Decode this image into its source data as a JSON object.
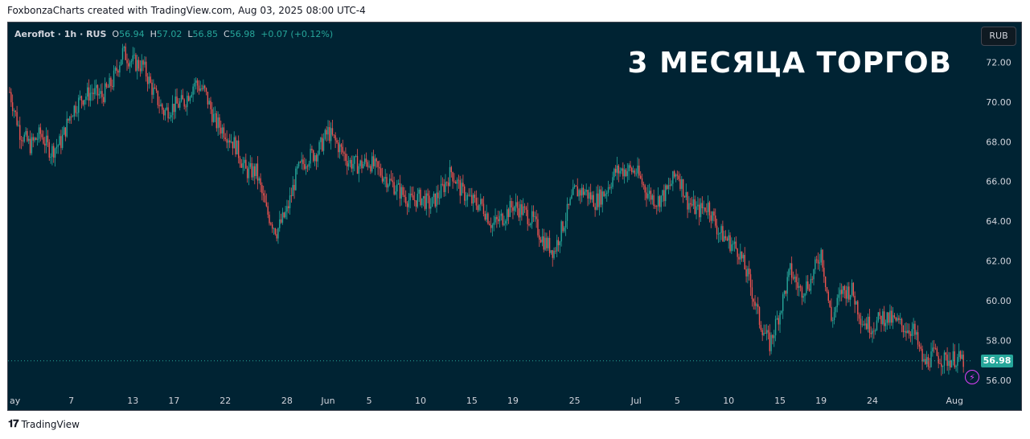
{
  "header": {
    "caption": "FoxbonzaCharts created with TradingView.com, Aug 03, 2025 08:00 UTC-4"
  },
  "legend": {
    "symbol": "Aeroflot · 1h · RUS",
    "open_label": "O",
    "open": "56.94",
    "high_label": "H",
    "high": "57.02",
    "low_label": "L",
    "low": "56.85",
    "close_label": "C",
    "close": "56.98",
    "change": "+0.07 (+0.12%)"
  },
  "currency_badge": "RUB",
  "watermark_text": "3 МЕСЯЦА ТОРГОВ",
  "last_price_label": "56.98",
  "footer": {
    "brand": "TradingView",
    "logo_icon": "tradingview-logo-icon"
  },
  "colors": {
    "background": "#002333",
    "up": "#26a69a",
    "down": "#ef5350",
    "accent": "#e040fb"
  },
  "chart_data": {
    "type": "candlestick",
    "symbol": "Aeroflot",
    "interval": "1h",
    "currency": "RUB",
    "last_price": 56.98,
    "ylim": [
      54.5,
      74.0
    ],
    "y_ticks": [
      "72.00",
      "70.00",
      "68.00",
      "66.00",
      "64.00",
      "62.00",
      "60.00",
      "58.00",
      "56.00"
    ],
    "x_ticks": [
      {
        "label": "ay",
        "day": 1
      },
      {
        "label": "7",
        "day": 7
      },
      {
        "label": "13",
        "day": 13
      },
      {
        "label": "17",
        "day": 17
      },
      {
        "label": "22",
        "day": 22
      },
      {
        "label": "28",
        "day": 28
      },
      {
        "label": "Jun",
        "day": 32
      },
      {
        "label": "5",
        "day": 36
      },
      {
        "label": "10",
        "day": 41
      },
      {
        "label": "15",
        "day": 46
      },
      {
        "label": "19",
        "day": 50
      },
      {
        "label": "25",
        "day": 56
      },
      {
        "label": "Jul",
        "day": 62
      },
      {
        "label": "5",
        "day": 66
      },
      {
        "label": "10",
        "day": 71
      },
      {
        "label": "15",
        "day": 76
      },
      {
        "label": "19",
        "day": 80
      },
      {
        "label": "24",
        "day": 85
      },
      {
        "label": "Aug",
        "day": 93
      }
    ],
    "x_range_days": [
      1,
      94
    ],
    "series": [
      {
        "name": "Aeroflot",
        "values": [
          [
            1,
            70.5
          ],
          [
            2,
            68.5
          ],
          [
            3,
            67.8
          ],
          [
            4,
            68.4
          ],
          [
            5,
            67.5
          ],
          [
            6,
            68.0
          ],
          [
            7,
            69.5
          ],
          [
            8,
            70.2
          ],
          [
            9,
            70.5
          ],
          [
            10,
            70.3
          ],
          [
            11,
            71.0
          ],
          [
            12,
            72.5
          ],
          [
            13,
            72.0
          ],
          [
            14,
            71.8
          ],
          [
            15,
            70.5
          ],
          [
            16,
            69.5
          ],
          [
            17,
            69.8
          ],
          [
            18,
            70.0
          ],
          [
            19,
            71.0
          ],
          [
            20,
            70.5
          ],
          [
            21,
            69.0
          ],
          [
            22,
            68.5
          ],
          [
            23,
            67.8
          ],
          [
            24,
            66.5
          ],
          [
            25,
            66.5
          ],
          [
            26,
            64.5
          ],
          [
            27,
            63.5
          ],
          [
            28,
            64.5
          ],
          [
            29,
            66.5
          ],
          [
            30,
            67.2
          ],
          [
            31,
            67.5
          ],
          [
            32,
            68.5
          ],
          [
            33,
            67.8
          ],
          [
            34,
            67.0
          ],
          [
            35,
            66.8
          ],
          [
            36,
            67.0
          ],
          [
            37,
            66.5
          ],
          [
            38,
            66.0
          ],
          [
            39,
            65.5
          ],
          [
            40,
            65.0
          ],
          [
            41,
            65.2
          ],
          [
            42,
            64.8
          ],
          [
            43,
            65.5
          ],
          [
            44,
            66.5
          ],
          [
            45,
            65.5
          ],
          [
            46,
            65.0
          ],
          [
            47,
            64.8
          ],
          [
            48,
            63.8
          ],
          [
            49,
            64.2
          ],
          [
            50,
            64.8
          ],
          [
            51,
            64.5
          ],
          [
            52,
            64.0
          ],
          [
            53,
            63.0
          ],
          [
            54,
            62.5
          ],
          [
            55,
            64.0
          ],
          [
            56,
            65.5
          ],
          [
            57,
            65.5
          ],
          [
            58,
            65.0
          ],
          [
            59,
            65.5
          ],
          [
            60,
            66.5
          ],
          [
            61,
            66.6
          ],
          [
            62,
            66.5
          ],
          [
            63,
            65.5
          ],
          [
            64,
            65.0
          ],
          [
            65,
            65.5
          ],
          [
            66,
            66.5
          ],
          [
            67,
            65.0
          ],
          [
            68,
            64.5
          ],
          [
            69,
            64.8
          ],
          [
            70,
            63.5
          ],
          [
            71,
            63.0
          ],
          [
            72,
            62.5
          ],
          [
            73,
            61.0
          ],
          [
            74,
            59.0
          ],
          [
            75,
            57.8
          ],
          [
            76,
            59.5
          ],
          [
            77,
            61.5
          ],
          [
            78,
            60.5
          ],
          [
            79,
            61.0
          ],
          [
            80,
            62.5
          ],
          [
            81,
            59.0
          ],
          [
            82,
            60.5
          ],
          [
            83,
            60.5
          ],
          [
            84,
            59.0
          ],
          [
            85,
            58.7
          ],
          [
            86,
            59.2
          ],
          [
            87,
            59.0
          ],
          [
            88,
            58.7
          ],
          [
            89,
            58.5
          ],
          [
            90,
            56.8
          ],
          [
            91,
            57.3
          ],
          [
            92,
            57.0
          ],
          [
            93,
            57.1
          ],
          [
            94,
            56.98
          ]
        ]
      }
    ],
    "grid": false,
    "legend": "top-left"
  }
}
